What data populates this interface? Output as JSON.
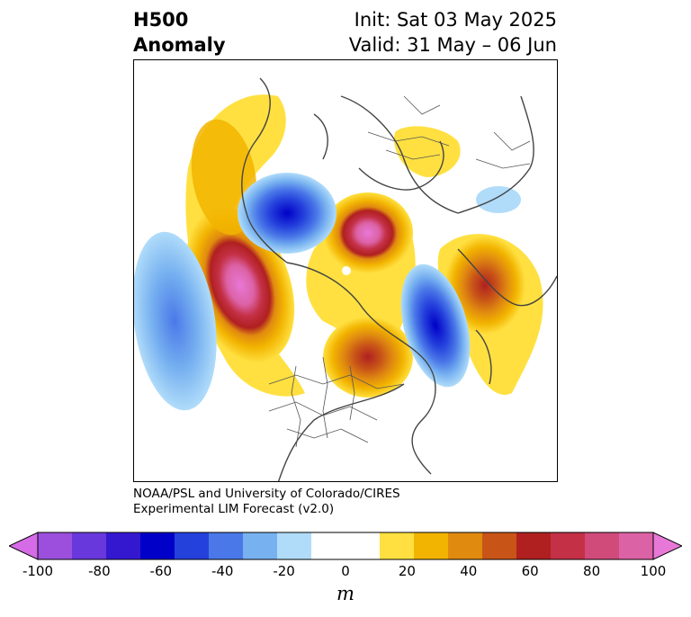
{
  "title": {
    "variable": "H500",
    "subtitle": "Anomaly",
    "init": "Init: Sat 03 May 2025",
    "valid": "Valid: 31 May – 06 Jun"
  },
  "credit": {
    "line1": "NOAA/PSL and University of Colorado/CIRES",
    "line2": "Experimental LIM Forecast (v2.0)"
  },
  "colorbar": {
    "unit": "m",
    "ticks": [
      "-100",
      "-80",
      "-60",
      "-40",
      "-20",
      "0",
      "20",
      "40",
      "60",
      "80",
      "100"
    ],
    "colors": [
      "#d56be6",
      "#9b4fdc",
      "#6838dc",
      "#3418d0",
      "#0000c8",
      "#2541dc",
      "#4a78e8",
      "#77b1f0",
      "#b0dcfa",
      "#ffffff",
      "#ffffff",
      "#ffe040",
      "#f2b400",
      "#e08a10",
      "#c85418",
      "#b02020",
      "#c43046",
      "#d04a7a",
      "#dc62a6",
      "#e878d8"
    ]
  },
  "map": {
    "projection": "polar-stereographic",
    "field": "500 hPa geopotential height anomaly",
    "anomalies": [
      {
        "sign": "positive",
        "peak_m": 100,
        "region": "North Pacific / Aleutians"
      },
      {
        "sign": "positive",
        "peak_m": 100,
        "region": "Siberia / Arctic"
      },
      {
        "sign": "positive",
        "peak_m": 60,
        "region": "Eastern Canada / Hudson Bay"
      },
      {
        "sign": "positive",
        "peak_m": 60,
        "region": "Scandinavia / Northern Europe"
      },
      {
        "sign": "positive",
        "peak_m": 20,
        "region": "Mediterranean / North Africa"
      },
      {
        "sign": "negative",
        "peak_m": -60,
        "region": "East Asia / Sea of Okhotsk"
      },
      {
        "sign": "negative",
        "peak_m": -60,
        "region": "Greenland / North Atlantic"
      },
      {
        "sign": "negative",
        "peak_m": -40,
        "region": "Central Pacific"
      },
      {
        "sign": "negative",
        "peak_m": -20,
        "region": "Western Europe"
      }
    ]
  }
}
